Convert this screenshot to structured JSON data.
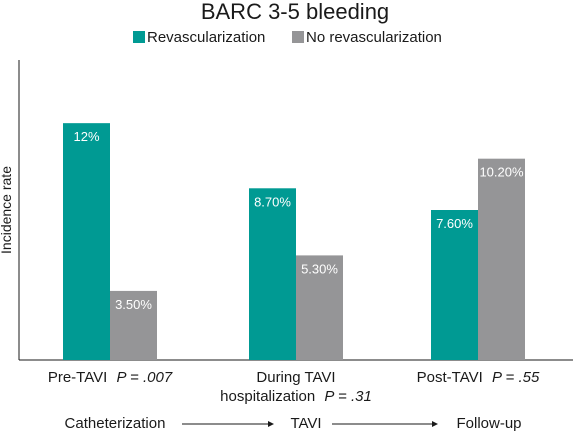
{
  "chart_data": {
    "type": "bar",
    "title": "BARC 3-5 bleeding",
    "ylabel": "Incidence rate",
    "xlabel": "",
    "ylim": [
      0,
      15.2
    ],
    "grid": false,
    "legend_position": "top",
    "categories": [
      {
        "line1": "Pre-TAVI",
        "line1_p": "P = .007",
        "line2": "",
        "line2_p": ""
      },
      {
        "line1": "During TAVI",
        "line1_p": "",
        "line2": "hospitalization",
        "line2_p": "P = .31"
      },
      {
        "line1": "Post-TAVI",
        "line1_p": "P = .55",
        "line2": "",
        "line2_p": ""
      }
    ],
    "series": [
      {
        "name": "Revascularization",
        "color": "#009a93",
        "values": [
          12,
          8.7,
          7.6
        ],
        "labels": [
          "12%",
          "8.70%",
          "7.60%"
        ]
      },
      {
        "name": "No revascularization",
        "color": "#959597",
        "values": [
          3.5,
          5.3,
          10.2
        ],
        "labels": [
          "3.50%",
          "5.30%",
          "10.20%"
        ]
      }
    ]
  },
  "timeline": {
    "stages": [
      "Catheterization",
      "TAVI",
      "Follow-up"
    ]
  }
}
